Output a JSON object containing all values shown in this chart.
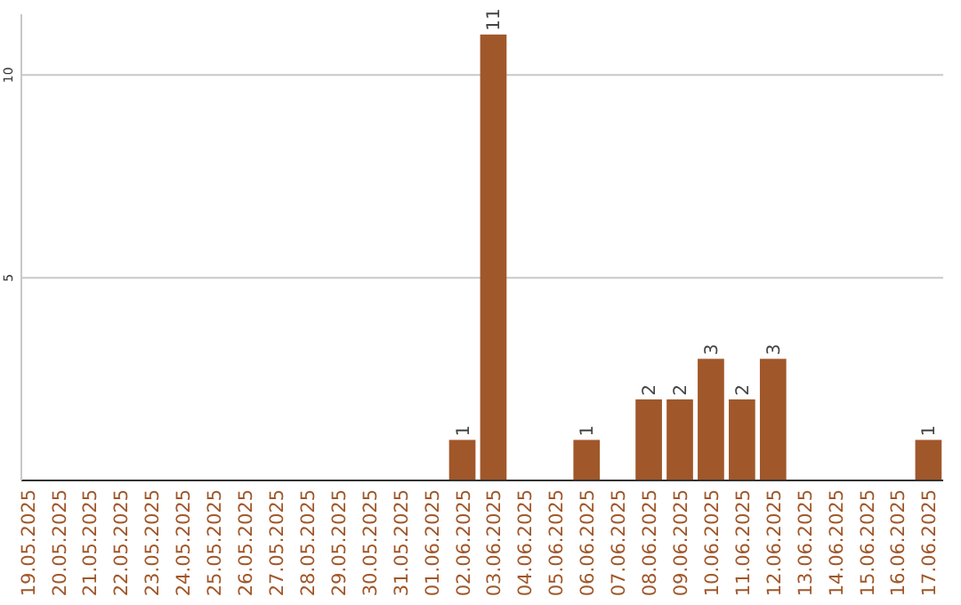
{
  "chart_data": {
    "type": "bar",
    "categories": [
      "19.05.2025",
      "20.05.2025",
      "21.05.2025",
      "22.05.2025",
      "23.05.2025",
      "24.05.2025",
      "25.05.2025",
      "26.05.2025",
      "27.05.2025",
      "28.05.2025",
      "29.05.2025",
      "30.05.2025",
      "31.05.2025",
      "01.06.2025",
      "02.06.2025",
      "03.06.2025",
      "04.06.2025",
      "05.06.2025",
      "06.06.2025",
      "07.06.2025",
      "08.06.2025",
      "09.06.2025",
      "10.06.2025",
      "11.06.2025",
      "12.06.2025",
      "13.06.2025",
      "14.06.2025",
      "15.06.2025",
      "16.06.2025",
      "17.06.2025"
    ],
    "values": [
      0,
      0,
      0,
      0,
      0,
      0,
      0,
      0,
      0,
      0,
      0,
      0,
      0,
      0,
      1,
      11,
      0,
      0,
      1,
      0,
      2,
      2,
      3,
      2,
      3,
      0,
      0,
      0,
      0,
      1
    ],
    "value_labels": [
      null,
      null,
      null,
      null,
      null,
      null,
      null,
      null,
      null,
      null,
      null,
      null,
      null,
      null,
      "1",
      "11",
      null,
      null,
      "1",
      null,
      "2",
      "2",
      "3",
      "2",
      "3",
      null,
      null,
      null,
      null,
      "1"
    ],
    "color": "#a0572a",
    "ylim": [
      0,
      11.5
    ],
    "yticks": [
      5,
      10
    ],
    "grid": "y"
  }
}
